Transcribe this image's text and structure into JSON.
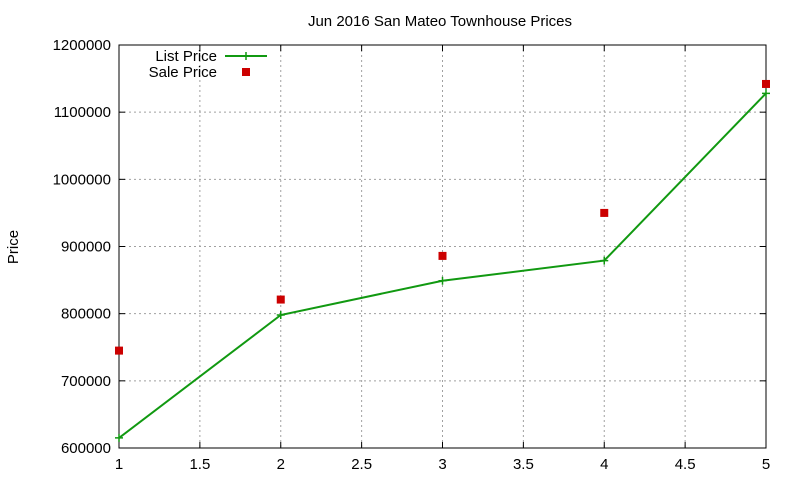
{
  "chart_data": {
    "type": "line",
    "title": "Jun 2016 San Mateo Townhouse Prices",
    "xlabel": "",
    "ylabel": "Price",
    "xlim": [
      1,
      5
    ],
    "ylim": [
      600000,
      1200000
    ],
    "x_ticks": [
      "1",
      "1.5",
      "2",
      "2.5",
      "3",
      "3.5",
      "4",
      "4.5",
      "5"
    ],
    "y_ticks": [
      "600000",
      "700000",
      "800000",
      "900000",
      "1000000",
      "1100000",
      "1200000"
    ],
    "grid": true,
    "legend_position": "top-left",
    "series": [
      {
        "name": "List Price",
        "style": "line+plus",
        "color": "#119911",
        "x": [
          1,
          2,
          3,
          4,
          5
        ],
        "values": [
          615000,
          798000,
          849000,
          879000,
          1128000
        ]
      },
      {
        "name": "Sale Price",
        "style": "square",
        "color": "#cc0000",
        "x": [
          1,
          2,
          3,
          4,
          5
        ],
        "values": [
          745000,
          821000,
          886000,
          950000,
          1142000
        ]
      }
    ]
  }
}
